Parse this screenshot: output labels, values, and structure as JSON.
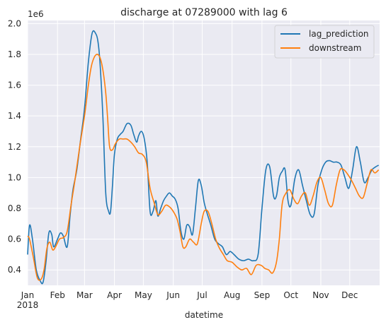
{
  "chart_data": {
    "type": "line",
    "title": "discharge at 07289000 with lag 6",
    "xlabel": "datetime",
    "ylabel": "",
    "y_scale_label": "1e6",
    "ylim": [
      0.3,
      2.02
    ],
    "xlim": [
      "2018-01-01",
      "2019-01-01"
    ],
    "grid": true,
    "legend_position": "top-right",
    "background": "#eaeaf2",
    "x_ticks": [
      {
        "date": "2018-01-01",
        "label": "Jan",
        "sublabel": "2018"
      },
      {
        "date": "2018-02-01",
        "label": "Feb"
      },
      {
        "date": "2018-03-01",
        "label": "Mar"
      },
      {
        "date": "2018-04-01",
        "label": "Apr"
      },
      {
        "date": "2018-05-01",
        "label": "May"
      },
      {
        "date": "2018-06-01",
        "label": "Jun"
      },
      {
        "date": "2018-07-01",
        "label": "Jul"
      },
      {
        "date": "2018-08-01",
        "label": "Aug"
      },
      {
        "date": "2018-09-01",
        "label": "Sep"
      },
      {
        "date": "2018-10-01",
        "label": "Oct"
      },
      {
        "date": "2018-11-01",
        "label": "Nov"
      },
      {
        "date": "2018-12-01",
        "label": "Dec"
      }
    ],
    "y_ticks": [
      0.4,
      0.6,
      0.8,
      1.0,
      1.2,
      1.4,
      1.6,
      1.8,
      2.0
    ],
    "y_tick_labels": [
      "0.4",
      "0.6",
      "0.8",
      "1.0",
      "1.2",
      "1.4",
      "1.6",
      "1.8",
      "2.0"
    ],
    "series": [
      {
        "name": "lag_prediction",
        "color": "#1f77b4",
        "x": [
          "2018-01-01",
          "2018-01-03",
          "2018-01-06",
          "2018-01-10",
          "2018-01-14",
          "2018-01-17",
          "2018-01-20",
          "2018-01-23",
          "2018-01-26",
          "2018-01-28",
          "2018-02-01",
          "2018-02-04",
          "2018-02-07",
          "2018-02-11",
          "2018-02-14",
          "2018-02-17",
          "2018-02-21",
          "2018-02-25",
          "2018-03-01",
          "2018-03-05",
          "2018-03-09",
          "2018-03-13",
          "2018-03-15",
          "2018-03-17",
          "2018-03-20",
          "2018-03-23",
          "2018-03-26",
          "2018-03-28",
          "2018-03-30",
          "2018-04-01",
          "2018-04-04",
          "2018-04-07",
          "2018-04-10",
          "2018-04-14",
          "2018-04-18",
          "2018-04-21",
          "2018-04-24",
          "2018-04-26",
          "2018-04-29",
          "2018-05-02",
          "2018-05-05",
          "2018-05-08",
          "2018-05-11",
          "2018-05-14",
          "2018-05-16",
          "2018-05-19",
          "2018-05-22",
          "2018-05-25",
          "2018-05-28",
          "2018-05-31",
          "2018-06-03",
          "2018-06-06",
          "2018-06-09",
          "2018-06-12",
          "2018-06-15",
          "2018-06-18",
          "2018-06-21",
          "2018-06-24",
          "2018-06-27",
          "2018-06-30",
          "2018-07-03",
          "2018-07-06",
          "2018-07-10",
          "2018-07-14",
          "2018-07-18",
          "2018-07-22",
          "2018-07-26",
          "2018-07-30",
          "2018-08-03",
          "2018-08-08",
          "2018-08-13",
          "2018-08-18",
          "2018-08-23",
          "2018-08-28",
          "2018-09-01",
          "2018-09-05",
          "2018-09-09",
          "2018-09-13",
          "2018-09-16",
          "2018-09-19",
          "2018-09-22",
          "2018-09-25",
          "2018-09-28",
          "2018-10-01",
          "2018-10-05",
          "2018-10-09",
          "2018-10-13",
          "2018-10-17",
          "2018-10-21",
          "2018-10-25",
          "2018-10-29",
          "2018-11-02",
          "2018-11-06",
          "2018-11-10",
          "2018-11-14",
          "2018-11-18",
          "2018-11-22",
          "2018-11-26",
          "2018-11-30",
          "2018-12-04",
          "2018-12-08",
          "2018-12-12",
          "2018-12-16",
          "2018-12-20",
          "2018-12-24",
          "2018-12-28",
          "2018-12-31"
        ],
        "y": [
          0.5,
          0.69,
          0.6,
          0.4,
          0.33,
          0.32,
          0.45,
          0.64,
          0.63,
          0.55,
          0.6,
          0.64,
          0.62,
          0.55,
          0.75,
          0.92,
          1.05,
          1.25,
          1.45,
          1.75,
          1.94,
          1.93,
          1.88,
          1.75,
          1.4,
          0.9,
          0.78,
          0.78,
          0.95,
          1.15,
          1.25,
          1.28,
          1.3,
          1.35,
          1.34,
          1.28,
          1.23,
          1.27,
          1.3,
          1.25,
          1.1,
          0.78,
          0.78,
          0.85,
          0.75,
          0.8,
          0.85,
          0.88,
          0.9,
          0.88,
          0.86,
          0.8,
          0.65,
          0.6,
          0.69,
          0.68,
          0.63,
          0.8,
          0.98,
          0.95,
          0.84,
          0.77,
          0.69,
          0.6,
          0.57,
          0.55,
          0.5,
          0.52,
          0.5,
          0.47,
          0.46,
          0.47,
          0.46,
          0.5,
          0.8,
          1.05,
          1.07,
          0.88,
          0.88,
          1.0,
          1.04,
          1.05,
          0.85,
          0.82,
          0.99,
          1.05,
          0.95,
          0.85,
          0.76,
          0.76,
          0.95,
          1.05,
          1.1,
          1.11,
          1.1,
          1.1,
          1.08,
          1.0,
          0.93,
          1.05,
          1.2,
          1.1,
          0.97,
          1.0,
          1.05,
          1.07,
          1.08
        ]
      },
      {
        "name": "downstream",
        "color": "#ff7f0e",
        "x": [
          "2018-01-01",
          "2018-01-03",
          "2018-01-07",
          "2018-01-11",
          "2018-01-15",
          "2018-01-18",
          "2018-01-21",
          "2018-01-24",
          "2018-01-27",
          "2018-01-30",
          "2018-02-03",
          "2018-02-07",
          "2018-02-11",
          "2018-02-15",
          "2018-02-19",
          "2018-02-24",
          "2018-03-01",
          "2018-03-05",
          "2018-03-08",
          "2018-03-11",
          "2018-03-14",
          "2018-03-17",
          "2018-03-20",
          "2018-03-23",
          "2018-03-25",
          "2018-03-27",
          "2018-03-30",
          "2018-04-02",
          "2018-04-06",
          "2018-04-10",
          "2018-04-14",
          "2018-04-18",
          "2018-04-22",
          "2018-04-26",
          "2018-04-30",
          "2018-05-04",
          "2018-05-08",
          "2018-05-12",
          "2018-05-16",
          "2018-05-20",
          "2018-05-24",
          "2018-05-28",
          "2018-06-01",
          "2018-06-05",
          "2018-06-08",
          "2018-06-11",
          "2018-06-14",
          "2018-06-18",
          "2018-06-22",
          "2018-06-26",
          "2018-06-30",
          "2018-07-03",
          "2018-07-07",
          "2018-07-11",
          "2018-07-15",
          "2018-07-19",
          "2018-07-23",
          "2018-07-27",
          "2018-08-01",
          "2018-08-06",
          "2018-08-11",
          "2018-08-16",
          "2018-08-21",
          "2018-08-26",
          "2018-08-31",
          "2018-09-04",
          "2018-09-08",
          "2018-09-12",
          "2018-09-16",
          "2018-09-19",
          "2018-09-22",
          "2018-09-26",
          "2018-09-30",
          "2018-10-04",
          "2018-10-08",
          "2018-10-12",
          "2018-10-16",
          "2018-10-20",
          "2018-10-24",
          "2018-10-28",
          "2018-11-01",
          "2018-11-05",
          "2018-11-09",
          "2018-11-13",
          "2018-11-17",
          "2018-11-21",
          "2018-11-25",
          "2018-11-29",
          "2018-12-03",
          "2018-12-07",
          "2018-12-11",
          "2018-12-15",
          "2018-12-19",
          "2018-12-23",
          "2018-12-27",
          "2018-12-31"
        ],
        "y": [
          0.62,
          0.6,
          0.48,
          0.35,
          0.34,
          0.4,
          0.54,
          0.58,
          0.53,
          0.55,
          0.6,
          0.61,
          0.65,
          0.82,
          0.98,
          1.2,
          1.4,
          1.6,
          1.72,
          1.78,
          1.8,
          1.78,
          1.7,
          1.55,
          1.38,
          1.2,
          1.18,
          1.22,
          1.25,
          1.25,
          1.25,
          1.23,
          1.2,
          1.16,
          1.15,
          1.1,
          0.93,
          0.84,
          0.76,
          0.78,
          0.82,
          0.81,
          0.78,
          0.73,
          0.65,
          0.55,
          0.55,
          0.6,
          0.58,
          0.57,
          0.7,
          0.78,
          0.78,
          0.7,
          0.6,
          0.54,
          0.5,
          0.46,
          0.45,
          0.42,
          0.4,
          0.41,
          0.37,
          0.43,
          0.43,
          0.41,
          0.4,
          0.38,
          0.45,
          0.6,
          0.83,
          0.9,
          0.92,
          0.86,
          0.83,
          0.88,
          0.9,
          0.82,
          0.88,
          0.97,
          1.0,
          0.92,
          0.83,
          0.82,
          0.95,
          1.05,
          1.05,
          1.02,
          0.98,
          0.93,
          0.88,
          0.87,
          0.96,
          1.05,
          1.03,
          1.05
        ]
      }
    ]
  }
}
